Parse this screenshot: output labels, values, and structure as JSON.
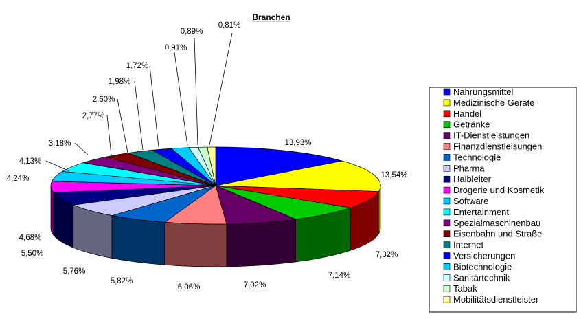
{
  "chart_data": {
    "type": "pie",
    "style": "3d-exploded-top",
    "title": "Branchen",
    "legend_position": "right",
    "slices": [
      {
        "name": "Nahrungsmittel",
        "label": "13,93%",
        "value": 13.93,
        "color": "#0000ff"
      },
      {
        "name": "Medizinische Geräte",
        "label": "13,54%",
        "value": 13.54,
        "color": "#ffff00"
      },
      {
        "name": "Handel",
        "label": "7,32%",
        "value": 7.32,
        "color": "#ff0000"
      },
      {
        "name": "Getränke",
        "label": "7,14%",
        "value": 7.14,
        "color": "#00cc00"
      },
      {
        "name": "IT-Dienstleistungen",
        "label": "7,02%",
        "value": 7.02,
        "color": "#660066"
      },
      {
        "name": "Finanzdienstleisungen",
        "label": "6,06%",
        "value": 6.06,
        "color": "#ff8080"
      },
      {
        "name": "Technologie",
        "label": "5,82%",
        "value": 5.82,
        "color": "#0066cc"
      },
      {
        "name": "Pharma",
        "label": "5,76%",
        "value": 5.76,
        "color": "#ccccff"
      },
      {
        "name": "Halbleiter",
        "label": "5,50%",
        "value": 5.5,
        "color": "#000080"
      },
      {
        "name": "Drogerie und Kosmetik",
        "label": "4,68%",
        "value": 4.68,
        "color": "#ff00ff"
      },
      {
        "name": "Software",
        "label": "4,24%",
        "value": 4.24,
        "color": "#00ccff"
      },
      {
        "name": "Entertainment",
        "label": "4,13%",
        "value": 4.13,
        "color": "#00ffff"
      },
      {
        "name": "Spezialmaschinenbau",
        "label": "3,18%",
        "value": 3.18,
        "color": "#800080"
      },
      {
        "name": "Eisenbahn und Straße",
        "label": "2,77%",
        "value": 2.77,
        "color": "#800000"
      },
      {
        "name": "Internet",
        "label": "2,60%",
        "value": 2.6,
        "color": "#008080"
      },
      {
        "name": "Versicherungen",
        "label": "1,98%",
        "value": 1.98,
        "color": "#0000ff"
      },
      {
        "name": "Biotechnologie",
        "label": "1,72%",
        "value": 1.72,
        "color": "#00ccff"
      },
      {
        "name": "Sanitärtechnik",
        "label": "0,91%",
        "value": 0.91,
        "color": "#ccffff"
      },
      {
        "name": "Tabak",
        "label": "0,89%",
        "value": 0.89,
        "color": "#ccffcc"
      },
      {
        "name": "Mobilitätsdienstleister",
        "label": "0,81%",
        "value": 0.81,
        "color": "#ffff99"
      }
    ]
  }
}
